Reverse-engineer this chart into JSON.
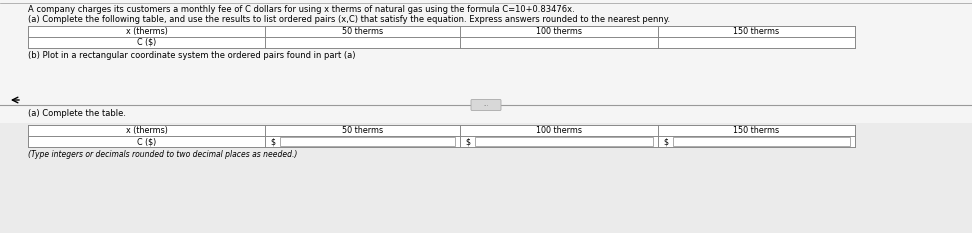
{
  "title_line1": "A company charges its customers a monthly fee of C dollars for using x therms of natural gas using the formula C=10+0.83476x.",
  "part_a_label": "(a) Complete the following table, and use the results to list ordered pairs (x,C) that satisfy the equation. Express answers rounded to the nearest penny.",
  "part_b_label": "(b) Plot in a rectangular coordinate system the ordered pairs found in part (a)",
  "part_a2_label": "(a) Complete the table.",
  "footer_label": "(Type integers or decimals rounded to two decimal places as needed.)",
  "table1_headers": [
    "x (therms)",
    "50 therms",
    "100 therms",
    "150 therms"
  ],
  "table1_row2": [
    "C ($)",
    "",
    "",
    ""
  ],
  "table2_headers": [
    "x (therms)",
    "50 therms",
    "100 therms",
    "150 therms"
  ],
  "table2_row2": [
    "C ($)",
    "$",
    "$",
    "$"
  ],
  "bg_color": "#f0f0f0",
  "text_color": "#000000",
  "line_color": "#888888",
  "font_size_main": 6.0,
  "font_size_table": 5.8
}
